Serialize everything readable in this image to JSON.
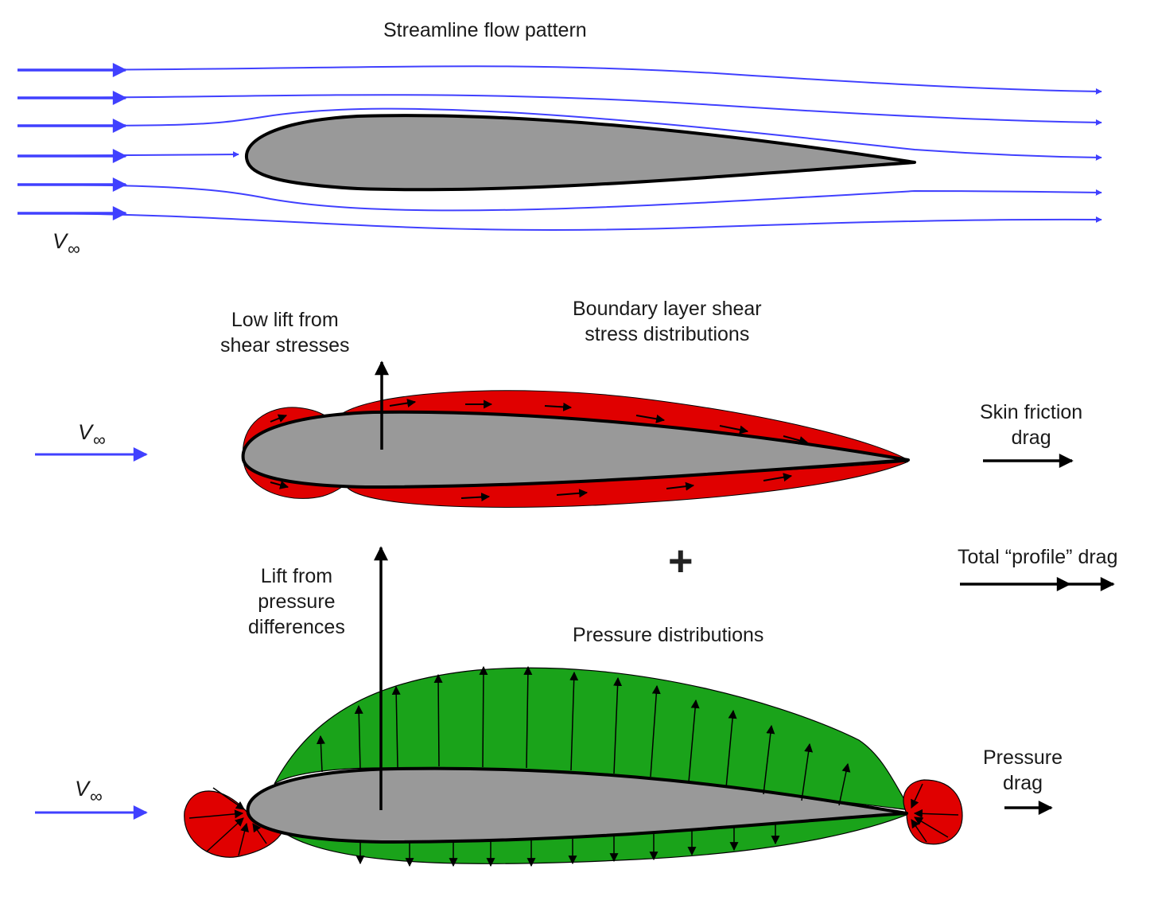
{
  "panels": {
    "streamline": {
      "title": "Streamline flow pattern"
    },
    "shear": {
      "title_line1": "Boundary layer shear",
      "title_line2": "stress distributions",
      "lift_line1": "Low lift from",
      "lift_line2": "shear stresses",
      "drag_line1": "Skin friction",
      "drag_line2": "drag"
    },
    "pressure": {
      "title": "Pressure distributions",
      "lift_line1": "Lift from",
      "lift_line2": "pressure",
      "lift_line3": "differences",
      "drag_line1": "Pressure",
      "drag_line2": "drag"
    },
    "total": {
      "label": "Total “profile” drag",
      "plus": "+"
    }
  },
  "freestream": {
    "symbol": "V",
    "subscript": "∞"
  },
  "colors": {
    "streamline": "#4040ff",
    "airfoil_fill": "#999999",
    "shear_fill": "#e00000",
    "pressure_fill": "#1aa31a",
    "suction_fill": "#e00000"
  }
}
